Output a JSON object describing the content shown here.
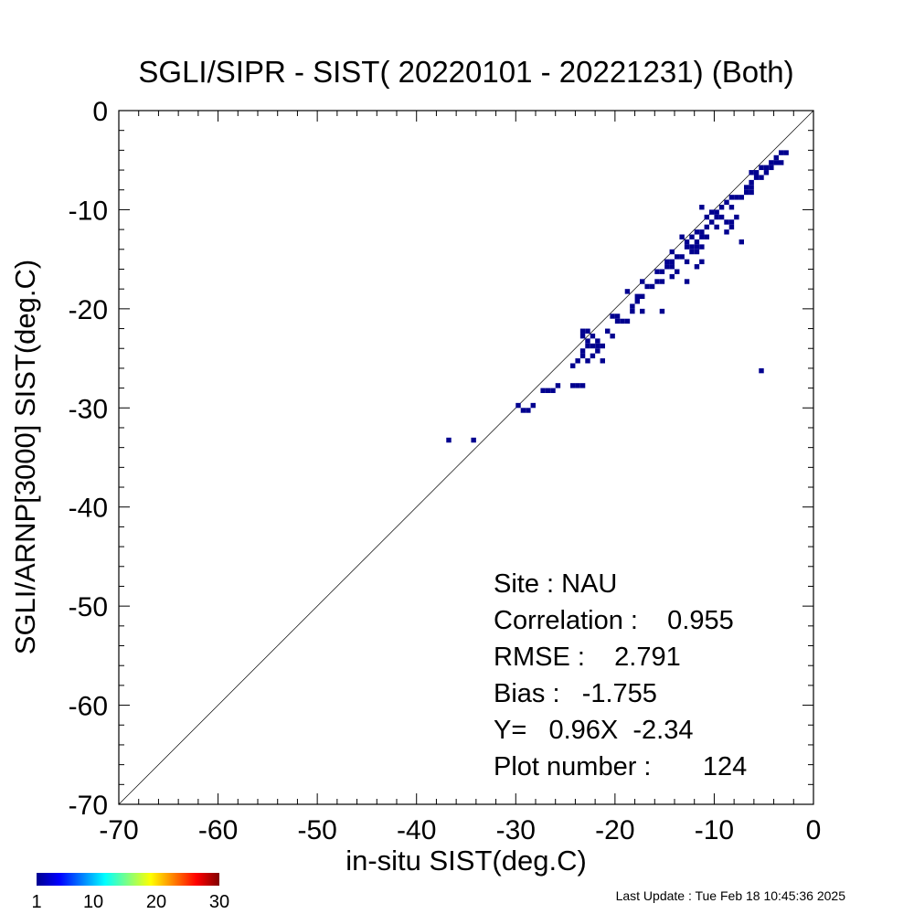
{
  "chart_data": {
    "type": "heatmap",
    "title": "SGLI/SIPR - SIST( 20220101 - 20221231) (Both)",
    "xlabel": "in-situ SIST(deg.C)",
    "ylabel": "SGLI/ARNP[3000]    SIST(deg.C)",
    "xlim": [
      -70,
      0
    ],
    "ylim": [
      -70,
      0
    ],
    "x_ticks": [
      "-70",
      "-60",
      "-50",
      "-40",
      "-30",
      "-20",
      "-10",
      "0"
    ],
    "y_ticks": [
      "-70",
      "-60",
      "-50",
      "-40",
      "-30",
      "-20",
      "-10",
      "0"
    ],
    "reference_line": "1:1",
    "cell_size": 0.5,
    "cell_color": "#00008f",
    "cells": [
      [
        -37,
        -33.5
      ],
      [
        -34.5,
        -33.5
      ],
      [
        -30,
        -30
      ],
      [
        -29.5,
        -30.5
      ],
      [
        -29,
        -30.5
      ],
      [
        -28.5,
        -30
      ],
      [
        -27.5,
        -28.5
      ],
      [
        -27,
        -28.5
      ],
      [
        -26.5,
        -28.5
      ],
      [
        -26,
        -28
      ],
      [
        -24.5,
        -28
      ],
      [
        -24,
        -28
      ],
      [
        -23.5,
        -28
      ],
      [
        -24.5,
        -26
      ],
      [
        -24,
        -25.5
      ],
      [
        -23.5,
        -25
      ],
      [
        -23,
        -25.5
      ],
      [
        -22.5,
        -25
      ],
      [
        -21.5,
        -25.5
      ],
      [
        -23.5,
        -24.5
      ],
      [
        -23,
        -24
      ],
      [
        -22.5,
        -24
      ],
      [
        -22,
        -24.5
      ],
      [
        -22,
        -24
      ],
      [
        -23.5,
        -23
      ],
      [
        -23,
        -23.5
      ],
      [
        -22.5,
        -23
      ],
      [
        -22,
        -23.5
      ],
      [
        -21.5,
        -24
      ],
      [
        -23.5,
        -22.5
      ],
      [
        -23,
        -22.5
      ],
      [
        -20.5,
        -23
      ],
      [
        -21,
        -22.5
      ],
      [
        -20.5,
        -21
      ],
      [
        -20,
        -21
      ],
      [
        -19.5,
        -21.5
      ],
      [
        -19,
        -21.5
      ],
      [
        -20,
        -21.5
      ],
      [
        -18.5,
        -20.5
      ],
      [
        -18.5,
        -20
      ],
      [
        -18,
        -19.5
      ],
      [
        -18,
        -19
      ],
      [
        -17.5,
        -19
      ],
      [
        -17.5,
        -20.5
      ],
      [
        -17,
        -18
      ],
      [
        -16.5,
        -18
      ],
      [
        -16,
        -17.5
      ],
      [
        -15.5,
        -17.5
      ],
      [
        -15.5,
        -20.5
      ],
      [
        -16,
        -16.5
      ],
      [
        -15.5,
        -16.5
      ],
      [
        -15,
        -16
      ],
      [
        -14.5,
        -16
      ],
      [
        -14,
        -16.5
      ],
      [
        -14.5,
        -17
      ],
      [
        -15,
        -15.5
      ],
      [
        -14.5,
        -15.5
      ],
      [
        -14,
        -15
      ],
      [
        -13.5,
        -15
      ],
      [
        -13,
        -15.5
      ],
      [
        -13,
        -17.5
      ],
      [
        -12.5,
        -14.5
      ],
      [
        -12,
        -14
      ],
      [
        -11.5,
        -15.5
      ],
      [
        -12,
        -16
      ],
      [
        -13,
        -13.5
      ],
      [
        -12.5,
        -13
      ],
      [
        -12,
        -13.5
      ],
      [
        -11.5,
        -13
      ],
      [
        -12,
        -12.5
      ],
      [
        -11.5,
        -12.5
      ],
      [
        -13,
        -14
      ],
      [
        -12.5,
        -14
      ],
      [
        -12,
        -14.5
      ],
      [
        -11.5,
        -14
      ],
      [
        -11,
        -12
      ],
      [
        -10.5,
        -11.5
      ],
      [
        -10,
        -11
      ],
      [
        -10,
        -10.5
      ],
      [
        -9.5,
        -10
      ],
      [
        -11,
        -11
      ],
      [
        -11.5,
        -10
      ],
      [
        -10.5,
        -10.5
      ],
      [
        -9.5,
        -11
      ],
      [
        -9,
        -11.5
      ],
      [
        -8.5,
        -11.5
      ],
      [
        -8,
        -11
      ],
      [
        -10,
        -12
      ],
      [
        -9,
        -12.5
      ],
      [
        -8.5,
        -12
      ],
      [
        -7.5,
        -13.5
      ],
      [
        -8.5,
        -10
      ],
      [
        -9,
        -9.5
      ],
      [
        -8.5,
        -9
      ],
      [
        -8,
        -9
      ],
      [
        -7.5,
        -9
      ],
      [
        -7,
        -8.5
      ],
      [
        -6.5,
        -8.5
      ],
      [
        -6.5,
        -8
      ],
      [
        -7,
        -8
      ],
      [
        -6.5,
        -7.5
      ],
      [
        -6,
        -7
      ],
      [
        -6,
        -6.5
      ],
      [
        -5.5,
        -7
      ],
      [
        -5,
        -6.5
      ],
      [
        -6.5,
        -6.5
      ],
      [
        -5.5,
        -6
      ],
      [
        -5,
        -6
      ],
      [
        -4.5,
        -6
      ],
      [
        -4,
        -5.5
      ],
      [
        -4.5,
        -5.5
      ],
      [
        -4,
        -5
      ],
      [
        -3.5,
        -4.5
      ],
      [
        -3,
        -4.5
      ],
      [
        -3.5,
        -5.5
      ],
      [
        -5.5,
        -26.5
      ],
      [
        -13.5,
        -13
      ],
      [
        -14.5,
        -14.5
      ],
      [
        -19,
        -18.5
      ],
      [
        -17.5,
        -17.5
      ],
      [
        -11,
        -13
      ]
    ],
    "stats": [
      "Site : NAU",
      "Correlation :    0.955",
      "RMSE :    2.791",
      "Bias :   -1.755",
      "Y=   0.96X  -2.34",
      "Plot number :       124"
    ],
    "colorbar": {
      "ticks": [
        "1",
        "10",
        "20",
        "30"
      ],
      "range": [
        1,
        30
      ],
      "colors": [
        "#00008f",
        "#0000ff",
        "#0080ff",
        "#00ffff",
        "#80ff80",
        "#ffff00",
        "#ff8000",
        "#ff0000",
        "#800000"
      ]
    },
    "footer": "Last Update : Tue Feb 18 10:45:36 2025"
  }
}
